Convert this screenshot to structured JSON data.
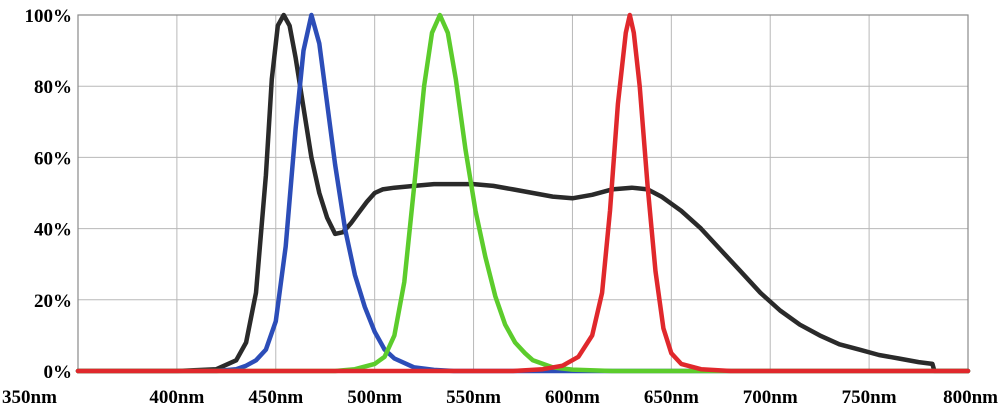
{
  "chart_data": {
    "type": "line",
    "title": "",
    "xlabel": "",
    "ylabel": "",
    "xlim": [
      350,
      800
    ],
    "ylim": [
      0,
      100
    ],
    "grid": true,
    "x_ticks": [
      {
        "value": 350,
        "label": "350nm"
      },
      {
        "value": 400,
        "label": "400nm"
      },
      {
        "value": 450,
        "label": "450nm"
      },
      {
        "value": 500,
        "label": "500nm"
      },
      {
        "value": 550,
        "label": "550nm"
      },
      {
        "value": 600,
        "label": "600nm"
      },
      {
        "value": 650,
        "label": "650nm"
      },
      {
        "value": 700,
        "label": "700nm"
      },
      {
        "value": 750,
        "label": "750nm"
      },
      {
        "value": 800,
        "label": "800nm"
      }
    ],
    "y_ticks": [
      {
        "value": 0,
        "label": "0%"
      },
      {
        "value": 20,
        "label": "20%"
      },
      {
        "value": 40,
        "label": "40%"
      },
      {
        "value": 60,
        "label": "60%"
      },
      {
        "value": 80,
        "label": "80%"
      },
      {
        "value": 100,
        "label": "100%"
      }
    ],
    "series": [
      {
        "color": "#2a2a2a",
        "points": [
          [
            350,
            0
          ],
          [
            400,
            0
          ],
          [
            420,
            0.5
          ],
          [
            430,
            3
          ],
          [
            435,
            8
          ],
          [
            440,
            22
          ],
          [
            445,
            55
          ],
          [
            448,
            82
          ],
          [
            451,
            97
          ],
          [
            454,
            100
          ],
          [
            457,
            97
          ],
          [
            460,
            88
          ],
          [
            464,
            74
          ],
          [
            468,
            60
          ],
          [
            472,
            50
          ],
          [
            476,
            43
          ],
          [
            480,
            38.5
          ],
          [
            484,
            39
          ],
          [
            488,
            41.5
          ],
          [
            492,
            44.5
          ],
          [
            496,
            47.5
          ],
          [
            500,
            50
          ],
          [
            504,
            51
          ],
          [
            510,
            51.5
          ],
          [
            520,
            52
          ],
          [
            530,
            52.5
          ],
          [
            540,
            52.5
          ],
          [
            550,
            52.5
          ],
          [
            560,
            52
          ],
          [
            570,
            51
          ],
          [
            580,
            50
          ],
          [
            590,
            49
          ],
          [
            600,
            48.5
          ],
          [
            610,
            49.5
          ],
          [
            620,
            51
          ],
          [
            630,
            51.5
          ],
          [
            638,
            51
          ],
          [
            645,
            49
          ],
          [
            655,
            45
          ],
          [
            665,
            40
          ],
          [
            675,
            34
          ],
          [
            685,
            28
          ],
          [
            695,
            22
          ],
          [
            705,
            17
          ],
          [
            715,
            13
          ],
          [
            725,
            10
          ],
          [
            735,
            7.5
          ],
          [
            745,
            6
          ],
          [
            755,
            4.5
          ],
          [
            765,
            3.5
          ],
          [
            775,
            2.5
          ],
          [
            782,
            2
          ],
          [
            783,
            0
          ],
          [
            800,
            0
          ]
        ]
      },
      {
        "color": "#2c4db8",
        "points": [
          [
            350,
            0
          ],
          [
            420,
            0
          ],
          [
            430,
            0.5
          ],
          [
            435,
            1.5
          ],
          [
            440,
            3
          ],
          [
            445,
            6
          ],
          [
            450,
            14
          ],
          [
            455,
            35
          ],
          [
            460,
            68
          ],
          [
            464,
            90
          ],
          [
            468,
            100
          ],
          [
            472,
            92
          ],
          [
            476,
            75
          ],
          [
            480,
            58
          ],
          [
            485,
            40
          ],
          [
            490,
            27
          ],
          [
            495,
            18
          ],
          [
            500,
            11
          ],
          [
            505,
            6
          ],
          [
            510,
            3.5
          ],
          [
            520,
            1
          ],
          [
            530,
            0.3
          ],
          [
            540,
            0
          ],
          [
            800,
            0
          ]
        ]
      },
      {
        "color": "#5ccc2c",
        "points": [
          [
            350,
            0
          ],
          [
            480,
            0
          ],
          [
            490,
            0.5
          ],
          [
            500,
            2
          ],
          [
            505,
            4
          ],
          [
            510,
            10
          ],
          [
            515,
            25
          ],
          [
            520,
            52
          ],
          [
            525,
            80
          ],
          [
            529,
            95
          ],
          [
            533,
            100
          ],
          [
            537,
            95
          ],
          [
            541,
            82
          ],
          [
            546,
            62
          ],
          [
            551,
            45
          ],
          [
            556,
            32
          ],
          [
            561,
            21
          ],
          [
            566,
            13
          ],
          [
            571,
            8
          ],
          [
            576,
            5
          ],
          [
            580,
            3
          ],
          [
            590,
            1
          ],
          [
            600,
            0.4
          ],
          [
            620,
            0
          ],
          [
            800,
            0
          ]
        ]
      },
      {
        "color": "#e0282c",
        "points": [
          [
            350,
            0
          ],
          [
            570,
            0
          ],
          [
            585,
            0.5
          ],
          [
            595,
            1.5
          ],
          [
            603,
            4
          ],
          [
            610,
            10
          ],
          [
            615,
            22
          ],
          [
            619,
            45
          ],
          [
            623,
            75
          ],
          [
            627,
            95
          ],
          [
            629,
            100
          ],
          [
            631,
            95
          ],
          [
            634,
            80
          ],
          [
            638,
            52
          ],
          [
            642,
            28
          ],
          [
            646,
            12
          ],
          [
            650,
            5
          ],
          [
            655,
            2
          ],
          [
            665,
            0.5
          ],
          [
            680,
            0
          ],
          [
            800,
            0
          ]
        ]
      }
    ]
  }
}
